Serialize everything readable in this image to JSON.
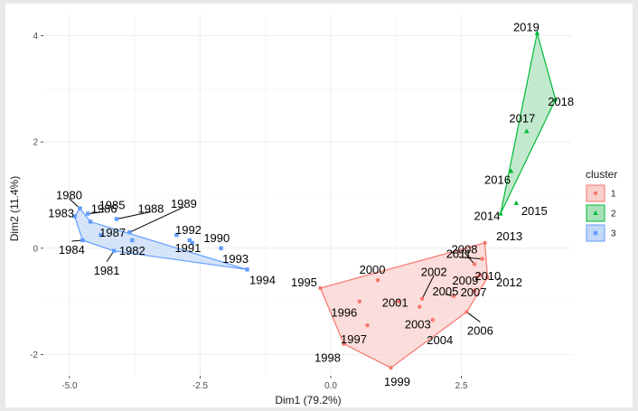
{
  "chart_data": {
    "type": "scatter",
    "xlabel": "Dim1 (79.2%)",
    "ylabel": "Dim2 (11.4%)",
    "xlim": [
      -5.5,
      4.6
    ],
    "ylim": [
      -2.4,
      4.4
    ],
    "x_ticks": [
      -5.0,
      -2.5,
      0.0,
      2.5
    ],
    "x_tick_labels": [
      "-5.0",
      "-2.5",
      "0.0",
      "2.5"
    ],
    "y_ticks": [
      -2,
      0,
      2,
      4
    ],
    "y_tick_labels": [
      "-2",
      "0",
      "2",
      "4"
    ],
    "grid": true,
    "legend": {
      "title": "cluster",
      "position": "right",
      "items": [
        {
          "label": "1",
          "color": "#f8766d",
          "fill": "#f9cfcc",
          "shape": "circle"
        },
        {
          "label": "2",
          "color": "#00ba38",
          "fill": "#a8e0b8",
          "shape": "triangle"
        },
        {
          "label": "3",
          "color": "#619cff",
          "fill": "#c3d8f7",
          "shape": "square"
        }
      ]
    },
    "points": [
      {
        "label": "1980",
        "x": -4.8,
        "y": 0.75,
        "cluster": "3"
      },
      {
        "label": "1981",
        "x": -4.15,
        "y": -0.05,
        "cluster": "3"
      },
      {
        "label": "1982",
        "x": -3.8,
        "y": 0.15,
        "cluster": "3"
      },
      {
        "label": "1983",
        "x": -4.9,
        "y": 0.6,
        "cluster": "3"
      },
      {
        "label": "1984",
        "x": -4.75,
        "y": 0.15,
        "cluster": "3"
      },
      {
        "label": "1985",
        "x": -4.6,
        "y": 0.5,
        "cluster": "3"
      },
      {
        "label": "1986",
        "x": -4.65,
        "y": 0.65,
        "cluster": "3"
      },
      {
        "label": "1987",
        "x": -4.4,
        "y": 0.25,
        "cluster": "3"
      },
      {
        "label": "1988",
        "x": -4.1,
        "y": 0.55,
        "cluster": "3"
      },
      {
        "label": "1989",
        "x": -3.85,
        "y": 0.3,
        "cluster": "3"
      },
      {
        "label": "1990",
        "x": -2.65,
        "y": 0.1,
        "cluster": "3"
      },
      {
        "label": "1991",
        "x": -2.7,
        "y": 0.15,
        "cluster": "3"
      },
      {
        "label": "1992",
        "x": -2.95,
        "y": 0.25,
        "cluster": "3"
      },
      {
        "label": "1993",
        "x": -2.1,
        "y": 0.0,
        "cluster": "3"
      },
      {
        "label": "1994",
        "x": -1.6,
        "y": -0.4,
        "cluster": "3"
      },
      {
        "label": "1995",
        "x": -0.2,
        "y": -0.75,
        "cluster": "1"
      },
      {
        "label": "1996",
        "x": 0.55,
        "y": -1.0,
        "cluster": "1"
      },
      {
        "label": "1997",
        "x": 0.7,
        "y": -1.45,
        "cluster": "1"
      },
      {
        "label": "1998",
        "x": 0.25,
        "y": -1.8,
        "cluster": "1"
      },
      {
        "label": "1999",
        "x": 1.15,
        "y": -2.25,
        "cluster": "1"
      },
      {
        "label": "2000",
        "x": 0.9,
        "y": -0.6,
        "cluster": "1"
      },
      {
        "label": "2001",
        "x": 1.3,
        "y": -1.0,
        "cluster": "1"
      },
      {
        "label": "2002",
        "x": 1.75,
        "y": -0.95,
        "cluster": "1"
      },
      {
        "label": "2003",
        "x": 1.7,
        "y": -1.1,
        "cluster": "1"
      },
      {
        "label": "2004",
        "x": 1.95,
        "y": -1.35,
        "cluster": "1"
      },
      {
        "label": "2005",
        "x": 2.35,
        "y": -0.9,
        "cluster": "1"
      },
      {
        "label": "2006",
        "x": 2.6,
        "y": -1.2,
        "cluster": "1"
      },
      {
        "label": "2007",
        "x": 2.75,
        "y": -0.8,
        "cluster": "1"
      },
      {
        "label": "2008",
        "x": 2.75,
        "y": -0.3,
        "cluster": "1"
      },
      {
        "label": "2009",
        "x": 2.8,
        "y": -0.55,
        "cluster": "1"
      },
      {
        "label": "2010",
        "x": 2.85,
        "y": -0.5,
        "cluster": "1"
      },
      {
        "label": "2011",
        "x": 2.9,
        "y": -0.2,
        "cluster": "1"
      },
      {
        "label": "2012",
        "x": 3.0,
        "y": -0.55,
        "cluster": "1"
      },
      {
        "label": "2013",
        "x": 2.95,
        "y": 0.1,
        "cluster": "1"
      },
      {
        "label": "2014",
        "x": 3.25,
        "y": 0.65,
        "cluster": "2"
      },
      {
        "label": "2015",
        "x": 3.55,
        "y": 0.85,
        "cluster": "2"
      },
      {
        "label": "2016",
        "x": 3.45,
        "y": 1.45,
        "cluster": "2"
      },
      {
        "label": "2017",
        "x": 3.75,
        "y": 2.2,
        "cluster": "2"
      },
      {
        "label": "2018",
        "x": 4.3,
        "y": 2.8,
        "cluster": "2"
      },
      {
        "label": "2019",
        "x": 3.95,
        "y": 4.05,
        "cluster": "2"
      }
    ],
    "hulls": [
      {
        "cluster": "1",
        "members": [
          "1995",
          "2013",
          "2012",
          "2006",
          "1999",
          "1998"
        ]
      },
      {
        "cluster": "2",
        "members": [
          "2014",
          "2019",
          "2018"
        ]
      },
      {
        "cluster": "3",
        "members": [
          "1980",
          "1985",
          "1994",
          "1981",
          "1984",
          "1983"
        ]
      }
    ]
  }
}
